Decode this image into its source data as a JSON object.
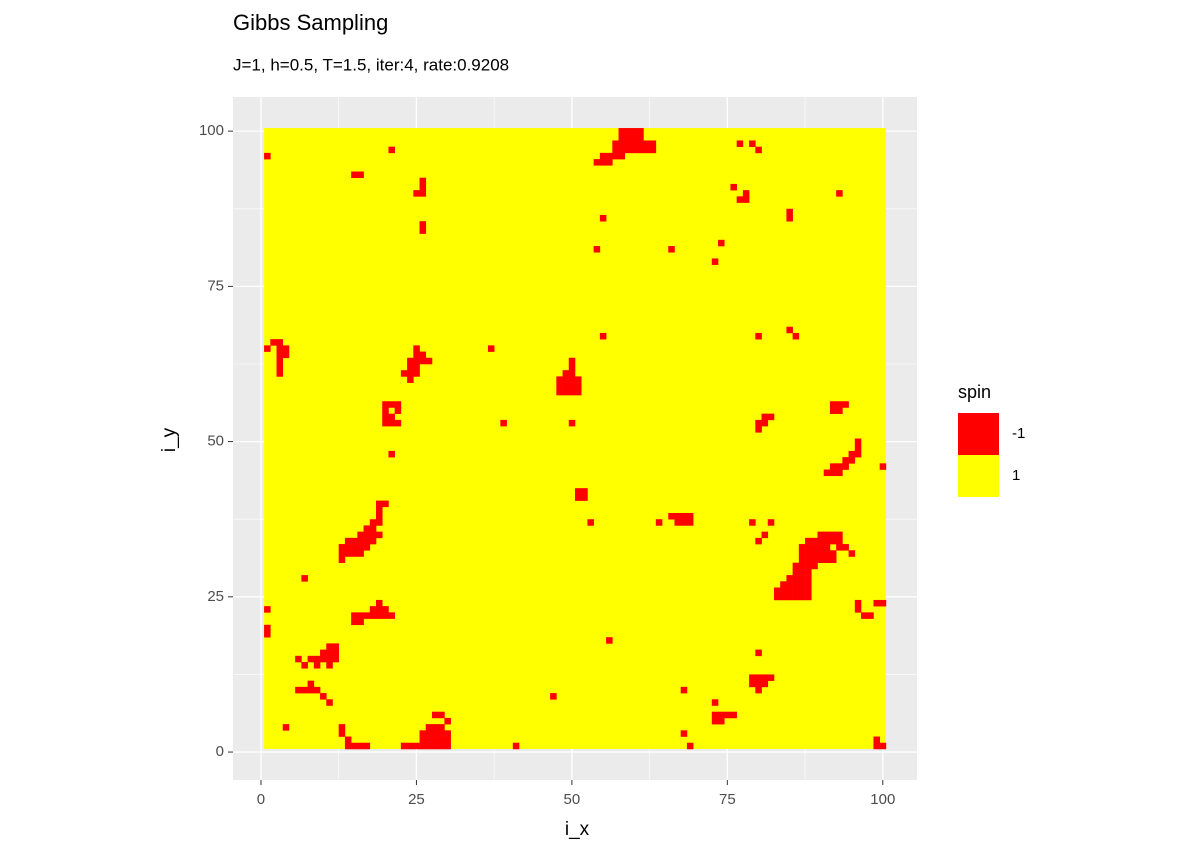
{
  "chart_data": {
    "type": "raster",
    "title": "Gibbs Sampling",
    "subtitle": "J=1, h=0.5, T=1.5, iter:4, rate:0.9208",
    "x_label": "i_x",
    "y_label": "i_y",
    "xlim": [
      -4.5,
      105.5
    ],
    "ylim": [
      -4.5,
      105.5
    ],
    "xticks": [
      0,
      25,
      50,
      75,
      100
    ],
    "yticks": [
      0,
      25,
      50,
      75,
      100
    ],
    "grid": true,
    "legend": {
      "title": "spin",
      "levels": [
        -1,
        1
      ],
      "colors": [
        "#ff0000",
        "#ffff00"
      ],
      "position": "right"
    },
    "extent": [
      1,
      100
    ],
    "background_value": 1,
    "cell_value": -1,
    "cells": [
      [
        58,
        100
      ],
      [
        59,
        100
      ],
      [
        60,
        100
      ],
      [
        61,
        100
      ],
      [
        58,
        99
      ],
      [
        59,
        99
      ],
      [
        60,
        99
      ],
      [
        61,
        99
      ],
      [
        57,
        98
      ],
      [
        58,
        98
      ],
      [
        59,
        98
      ],
      [
        60,
        98
      ],
      [
        61,
        98
      ],
      [
        62,
        98
      ],
      [
        63,
        98
      ],
      [
        57,
        97
      ],
      [
        58,
        97
      ],
      [
        59,
        97
      ],
      [
        60,
        97
      ],
      [
        61,
        97
      ],
      [
        62,
        97
      ],
      [
        63,
        97
      ],
      [
        55,
        96
      ],
      [
        56,
        96
      ],
      [
        57,
        96
      ],
      [
        58,
        96
      ],
      [
        54,
        95
      ],
      [
        55,
        95
      ],
      [
        56,
        95
      ],
      [
        1,
        96
      ],
      [
        21,
        97
      ],
      [
        15,
        93
      ],
      [
        16,
        93
      ],
      [
        26,
        92
      ],
      [
        26,
        91
      ],
      [
        26,
        90
      ],
      [
        25,
        90
      ],
      [
        26,
        85
      ],
      [
        26,
        84
      ],
      [
        55,
        86
      ],
      [
        54,
        81
      ],
      [
        66,
        81
      ],
      [
        73,
        79
      ],
      [
        74,
        82
      ],
      [
        76,
        91
      ],
      [
        78,
        90
      ],
      [
        78,
        89
      ],
      [
        77,
        89
      ],
      [
        80,
        97
      ],
      [
        77,
        98
      ],
      [
        79,
        98
      ],
      [
        85,
        87
      ],
      [
        85,
        86
      ],
      [
        93,
        90
      ],
      [
        1,
        65
      ],
      [
        2,
        66
      ],
      [
        3,
        66
      ],
      [
        3,
        65
      ],
      [
        4,
        65
      ],
      [
        4,
        64
      ],
      [
        3,
        64
      ],
      [
        3,
        63
      ],
      [
        3,
        62
      ],
      [
        3,
        61
      ],
      [
        37,
        65
      ],
      [
        25,
        65
      ],
      [
        25,
        64
      ],
      [
        26,
        64
      ],
      [
        24,
        63
      ],
      [
        25,
        63
      ],
      [
        26,
        63
      ],
      [
        27,
        63
      ],
      [
        24,
        62
      ],
      [
        25,
        62
      ],
      [
        23,
        61
      ],
      [
        24,
        61
      ],
      [
        25,
        61
      ],
      [
        24,
        60
      ],
      [
        20,
        56
      ],
      [
        21,
        56
      ],
      [
        22,
        56
      ],
      [
        20,
        55
      ],
      [
        22,
        55
      ],
      [
        20,
        54
      ],
      [
        21,
        54
      ],
      [
        20,
        53
      ],
      [
        21,
        53
      ],
      [
        22,
        53
      ],
      [
        21,
        48
      ],
      [
        50,
        63
      ],
      [
        50,
        62
      ],
      [
        49,
        61
      ],
      [
        50,
        61
      ],
      [
        48,
        60
      ],
      [
        49,
        60
      ],
      [
        50,
        60
      ],
      [
        51,
        60
      ],
      [
        48,
        59
      ],
      [
        49,
        59
      ],
      [
        50,
        59
      ],
      [
        51,
        59
      ],
      [
        48,
        58
      ],
      [
        49,
        58
      ],
      [
        50,
        58
      ],
      [
        51,
        58
      ],
      [
        55,
        67
      ],
      [
        39,
        53
      ],
      [
        50,
        53
      ],
      [
        51,
        42
      ],
      [
        51,
        41
      ],
      [
        52,
        42
      ],
      [
        52,
        41
      ],
      [
        53,
        37
      ],
      [
        64,
        37
      ],
      [
        66,
        38
      ],
      [
        67,
        38
      ],
      [
        68,
        38
      ],
      [
        69,
        38
      ],
      [
        67,
        37
      ],
      [
        68,
        37
      ],
      [
        69,
        37
      ],
      [
        79,
        37
      ],
      [
        82,
        37
      ],
      [
        81,
        35
      ],
      [
        80,
        34
      ],
      [
        19,
        40
      ],
      [
        20,
        40
      ],
      [
        19,
        39
      ],
      [
        19,
        38
      ],
      [
        18,
        37
      ],
      [
        19,
        37
      ],
      [
        18,
        36
      ],
      [
        17,
        36
      ],
      [
        16,
        35
      ],
      [
        17,
        35
      ],
      [
        18,
        35
      ],
      [
        19,
        35
      ],
      [
        14,
        34
      ],
      [
        15,
        34
      ],
      [
        16,
        34
      ],
      [
        17,
        34
      ],
      [
        18,
        34
      ],
      [
        13,
        33
      ],
      [
        14,
        33
      ],
      [
        15,
        33
      ],
      [
        16,
        33
      ],
      [
        17,
        33
      ],
      [
        13,
        32
      ],
      [
        14,
        32
      ],
      [
        15,
        32
      ],
      [
        16,
        32
      ],
      [
        13,
        31
      ],
      [
        7,
        28
      ],
      [
        1,
        23
      ],
      [
        1,
        20
      ],
      [
        1,
        19
      ],
      [
        19,
        24
      ],
      [
        18,
        23
      ],
      [
        19,
        23
      ],
      [
        20,
        23
      ],
      [
        15,
        22
      ],
      [
        16,
        22
      ],
      [
        17,
        22
      ],
      [
        18,
        22
      ],
      [
        19,
        22
      ],
      [
        20,
        22
      ],
      [
        21,
        22
      ],
      [
        15,
        21
      ],
      [
        16,
        21
      ],
      [
        11,
        17
      ],
      [
        12,
        17
      ],
      [
        10,
        16
      ],
      [
        11,
        16
      ],
      [
        12,
        16
      ],
      [
        6,
        15
      ],
      [
        8,
        15
      ],
      [
        9,
        15
      ],
      [
        10,
        15
      ],
      [
        11,
        15
      ],
      [
        12,
        15
      ],
      [
        7,
        14
      ],
      [
        9,
        14
      ],
      [
        11,
        14
      ],
      [
        8,
        11
      ],
      [
        6,
        10
      ],
      [
        7,
        10
      ],
      [
        8,
        10
      ],
      [
        9,
        10
      ],
      [
        10,
        9
      ],
      [
        11,
        8
      ],
      [
        13,
        4
      ],
      [
        13,
        3
      ],
      [
        14,
        2
      ],
      [
        14,
        1
      ],
      [
        15,
        1
      ],
      [
        16,
        1
      ],
      [
        17,
        1
      ],
      [
        4,
        4
      ],
      [
        28,
        6
      ],
      [
        29,
        6
      ],
      [
        30,
        5
      ],
      [
        27,
        4
      ],
      [
        28,
        4
      ],
      [
        29,
        4
      ],
      [
        26,
        3
      ],
      [
        27,
        3
      ],
      [
        28,
        3
      ],
      [
        29,
        3
      ],
      [
        30,
        3
      ],
      [
        26,
        2
      ],
      [
        27,
        2
      ],
      [
        28,
        2
      ],
      [
        29,
        2
      ],
      [
        30,
        2
      ],
      [
        23,
        1
      ],
      [
        24,
        1
      ],
      [
        25,
        1
      ],
      [
        26,
        1
      ],
      [
        27,
        1
      ],
      [
        28,
        1
      ],
      [
        29,
        1
      ],
      [
        30,
        1
      ],
      [
        41,
        1
      ],
      [
        56,
        18
      ],
      [
        47,
        9
      ],
      [
        68,
        10
      ],
      [
        68,
        3
      ],
      [
        69,
        1
      ],
      [
        73,
        8
      ],
      [
        73,
        6
      ],
      [
        74,
        6
      ],
      [
        75,
        6
      ],
      [
        76,
        6
      ],
      [
        73,
        5
      ],
      [
        74,
        5
      ],
      [
        80,
        16
      ],
      [
        79,
        12
      ],
      [
        80,
        12
      ],
      [
        81,
        12
      ],
      [
        82,
        12
      ],
      [
        79,
        11
      ],
      [
        80,
        11
      ],
      [
        81,
        11
      ],
      [
        80,
        10
      ],
      [
        90,
        35
      ],
      [
        91,
        35
      ],
      [
        92,
        35
      ],
      [
        93,
        35
      ],
      [
        88,
        34
      ],
      [
        89,
        34
      ],
      [
        90,
        34
      ],
      [
        91,
        34
      ],
      [
        92,
        34
      ],
      [
        93,
        34
      ],
      [
        87,
        33
      ],
      [
        88,
        33
      ],
      [
        89,
        33
      ],
      [
        90,
        33
      ],
      [
        91,
        33
      ],
      [
        93,
        33
      ],
      [
        94,
        33
      ],
      [
        87,
        32
      ],
      [
        88,
        32
      ],
      [
        89,
        32
      ],
      [
        90,
        32
      ],
      [
        91,
        32
      ],
      [
        92,
        32
      ],
      [
        95,
        32
      ],
      [
        87,
        31
      ],
      [
        88,
        31
      ],
      [
        89,
        31
      ],
      [
        90,
        31
      ],
      [
        91,
        31
      ],
      [
        92,
        31
      ],
      [
        86,
        30
      ],
      [
        87,
        30
      ],
      [
        88,
        30
      ],
      [
        89,
        30
      ],
      [
        86,
        29
      ],
      [
        87,
        29
      ],
      [
        88,
        29
      ],
      [
        85,
        28
      ],
      [
        86,
        28
      ],
      [
        87,
        28
      ],
      [
        88,
        28
      ],
      [
        84,
        27
      ],
      [
        85,
        27
      ],
      [
        86,
        27
      ],
      [
        87,
        27
      ],
      [
        88,
        27
      ],
      [
        83,
        26
      ],
      [
        84,
        26
      ],
      [
        85,
        26
      ],
      [
        86,
        26
      ],
      [
        87,
        26
      ],
      [
        88,
        26
      ],
      [
        83,
        25
      ],
      [
        84,
        25
      ],
      [
        85,
        25
      ],
      [
        86,
        25
      ],
      [
        87,
        25
      ],
      [
        88,
        25
      ],
      [
        96,
        24
      ],
      [
        96,
        23
      ],
      [
        97,
        22
      ],
      [
        98,
        22
      ],
      [
        99,
        24
      ],
      [
        100,
        24
      ],
      [
        96,
        50
      ],
      [
        96,
        49
      ],
      [
        95,
        48
      ],
      [
        96,
        48
      ],
      [
        94,
        47
      ],
      [
        95,
        47
      ],
      [
        92,
        46
      ],
      [
        93,
        46
      ],
      [
        94,
        46
      ],
      [
        91,
        45
      ],
      [
        92,
        45
      ],
      [
        93,
        45
      ],
      [
        100,
        46
      ],
      [
        92,
        56
      ],
      [
        93,
        56
      ],
      [
        94,
        56
      ],
      [
        92,
        55
      ],
      [
        93,
        55
      ],
      [
        81,
        54
      ],
      [
        82,
        54
      ],
      [
        80,
        53
      ],
      [
        81,
        53
      ],
      [
        80,
        52
      ],
      [
        85,
        68
      ],
      [
        86,
        67
      ],
      [
        80,
        67
      ],
      [
        100,
        1
      ],
      [
        99,
        2
      ],
      [
        99,
        1
      ]
    ]
  }
}
